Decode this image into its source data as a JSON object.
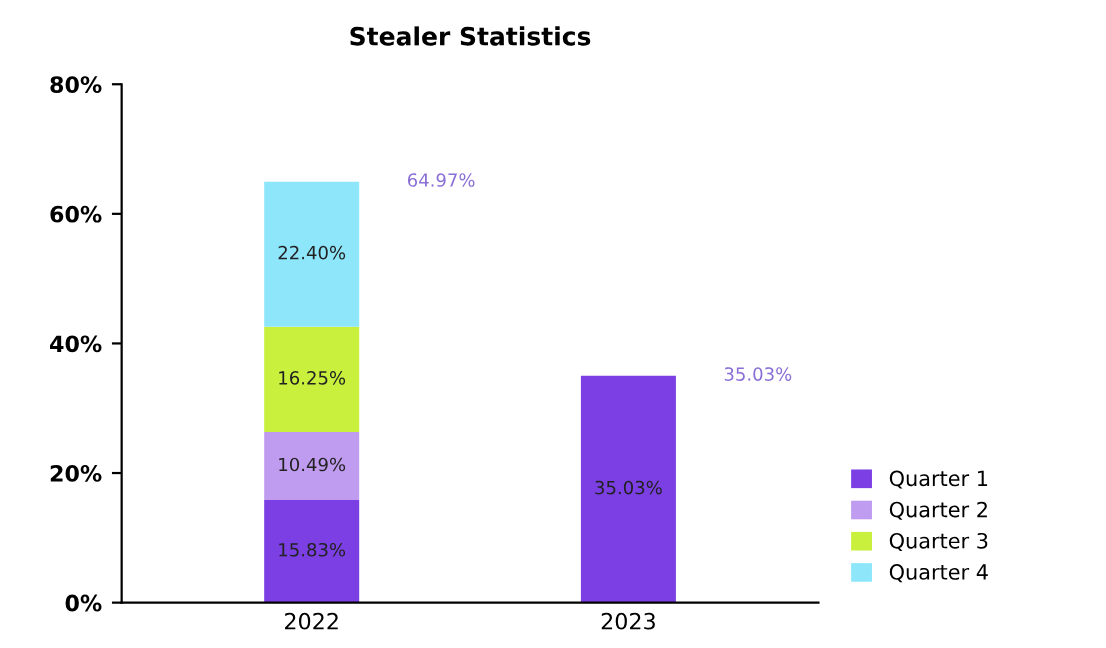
{
  "chart_data": {
    "type": "bar",
    "title": "Stealer Statistics",
    "categories": [
      "2022",
      "2023"
    ],
    "stacked": true,
    "series": [
      {
        "name": "Quarter 1",
        "color": "#7b3fe4",
        "values": [
          15.83,
          35.03
        ],
        "value_labels": [
          "15.83%",
          "35.03%"
        ]
      },
      {
        "name": "Quarter 2",
        "color": "#c09cf0",
        "values": [
          10.49,
          null
        ],
        "value_labels": [
          "10.49%",
          null
        ]
      },
      {
        "name": "Quarter 3",
        "color": "#c8f03c",
        "values": [
          16.25,
          null
        ],
        "value_labels": [
          "16.25%",
          null
        ]
      },
      {
        "name": "Quarter 4",
        "color": "#8ee6fb",
        "values": [
          22.4,
          null
        ],
        "value_labels": [
          "22.40%",
          null
        ]
      }
    ],
    "totals": [
      "64.97%",
      "35.03%"
    ],
    "ylim": [
      0,
      80
    ],
    "yticks": [
      {
        "value": 0,
        "label": "0%"
      },
      {
        "value": 20,
        "label": "20%"
      },
      {
        "value": 40,
        "label": "40%"
      },
      {
        "value": 60,
        "label": "60%"
      },
      {
        "value": 80,
        "label": "80%"
      }
    ],
    "grid": false,
    "legend": "bottom right"
  }
}
